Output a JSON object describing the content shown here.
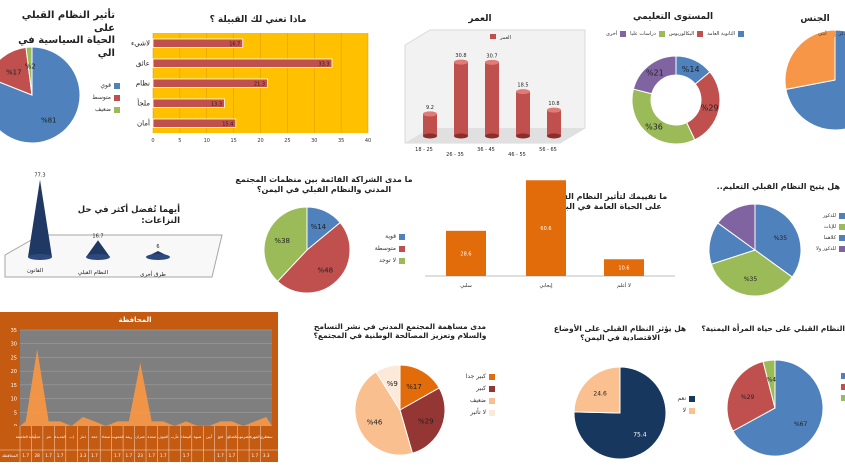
{
  "chart_data": [
    {
      "id": "political",
      "type": "pie",
      "title": "تأثير النظام القبلي على الحياة السياسية في اليمن",
      "title_visible": "تأثير النظام القبلي على\nالحياة السياسية في الي",
      "categories": [
        "قوي",
        "متوسط",
        "ضعيف"
      ],
      "values": [
        81,
        17,
        2
      ],
      "labels": [
        "%81",
        "%17",
        "%2"
      ],
      "colors": [
        "#4f81bd",
        "#c0504d",
        "#9bbb59"
      ],
      "legend": "right"
    },
    {
      "id": "tribe",
      "type": "bar",
      "orientation": "horizontal",
      "title": "ماذا تعني لك القبيلة ؟",
      "categories": [
        "لاشيء",
        "عائق",
        "نظام",
        "ملجأ",
        "أمان"
      ],
      "values": [
        16.7,
        33.3,
        21.3,
        13.3,
        15.4
      ],
      "value_labels": [
        "16.7",
        "33.3",
        "21.3",
        "13.3",
        "15.4"
      ],
      "xlim": [
        0,
        40
      ],
      "xticks": [
        "0",
        "5",
        "10",
        "15",
        "20",
        "25",
        "30",
        "35",
        "40"
      ],
      "color": "#c0504d",
      "plot_background": "#ffc000",
      "grid": true
    },
    {
      "id": "age",
      "type": "bar",
      "style": "3d-cylinder",
      "title": "العمر",
      "legend_label": "العمر",
      "categories": [
        "18 - 25",
        "26 - 35",
        "36 - 45",
        "46 - 55",
        "56 - 65"
      ],
      "values": [
        9.2,
        30.8,
        30.7,
        18.5,
        10.8
      ],
      "value_labels": [
        "9.2",
        "30.8",
        "30.7",
        "18.5",
        "10.8"
      ],
      "color": "#c0504d"
    },
    {
      "id": "education",
      "type": "pie",
      "style": "doughnut",
      "title": "المستوى التعليمي",
      "categories": [
        "الثانوية العامة",
        "البكالوريوس",
        "دراسات عليا",
        "أخرى"
      ],
      "values": [
        14,
        29,
        36,
        21
      ],
      "labels": [
        "%14",
        "%29",
        "%36",
        "%21"
      ],
      "colors": [
        "#4f81bd",
        "#c0504d",
        "#9bbb59",
        "#8064a2"
      ],
      "legend": "top"
    },
    {
      "id": "gender",
      "type": "pie",
      "title": "الجنس",
      "categories": [
        "ذكر",
        "أنثى"
      ],
      "values": [
        72,
        28
      ],
      "labels": [
        "%28"
      ],
      "colors": [
        "#4f81bd",
        "#f79646"
      ],
      "legend": "top"
    },
    {
      "id": "conflict",
      "type": "bar",
      "style": "3d-cone",
      "title": "أيهما تُفضل أكثر في حل النزاعات:",
      "categories": [
        "القانون",
        "النظام القبلي",
        "طرق أخرى"
      ],
      "values": [
        77.3,
        16.7,
        6
      ],
      "value_labels": [
        "77.3",
        "16.7",
        "6"
      ],
      "color": "#1f3864"
    },
    {
      "id": "partnership",
      "type": "pie",
      "title": "ما مدى الشراكة القائمة بين منظمات المجتمع المدني والنظام القبلي في اليمن؟",
      "categories": [
        "قوية",
        "متوسطة",
        "لا توجد"
      ],
      "values": [
        14,
        48,
        38
      ],
      "labels": [
        "%14",
        "%48",
        "%38"
      ],
      "colors": [
        "#4f81bd",
        "#c0504d",
        "#9bbb59"
      ],
      "legend": "right"
    },
    {
      "id": "assessment",
      "type": "bar",
      "title": "ما تقييمك لتأثير النظام القبلي على الحياة العامة في البلد؟",
      "categories": [
        "سلبي",
        "إيجابي",
        "لا أعلم"
      ],
      "values": [
        28.6,
        60.6,
        10.6
      ],
      "value_labels": [
        "28.6",
        "60.6",
        "10.6"
      ],
      "color": "#e26b0a"
    },
    {
      "id": "education_access",
      "type": "pie",
      "title": "هل يتيح النظام القبلي التعليم..",
      "categories": [
        "للذكور",
        "للإناث",
        "كلاهما",
        "للذكور ولا"
      ],
      "values": [
        35,
        35,
        15,
        15
      ],
      "labels": [
        "%35",
        "%35"
      ],
      "colors": [
        "#4f81bd",
        "#9bbb59",
        "#4f81bd",
        "#8064a2"
      ],
      "legend": "right"
    },
    {
      "id": "governorate",
      "type": "area",
      "title": "المحافظة",
      "series_label": "المحافظة",
      "categories": [
        "أمانة العاصمة",
        "عدن",
        "تعز",
        "الحديدة",
        "إب",
        "ذمار",
        "حجة",
        "صنعاء",
        "المحويت",
        "ريمة",
        "عمران",
        "صعدة",
        "الجوف",
        "مأرب",
        "البيضاء",
        "شبوة",
        "أبين",
        "لحج",
        "الضالع",
        "حضرموت",
        "المهرة",
        "سقطرى"
      ],
      "values": [
        1.7,
        28,
        1.7,
        1.7,
        0,
        3.3,
        1.7,
        0,
        1.7,
        1.7,
        23,
        1.7,
        1.7,
        0,
        1.7,
        0,
        0,
        1.7,
        1.7,
        0,
        1.7,
        3.3
      ],
      "ylim": [
        0,
        35
      ],
      "yticks": [
        "0",
        "5",
        "10",
        "15",
        "20",
        "25",
        "30",
        "35"
      ],
      "color": "#f79646",
      "background": "#c55a11",
      "plot_background": "#7f7f7f",
      "row_label": "المحافظة",
      "table_values": [
        "1.7",
        "28",
        "1.7",
        "1.7",
        "",
        "3.3",
        "1.7",
        "",
        "1.7",
        "1.7",
        "23",
        "1.7",
        "1.7",
        "",
        "1.7",
        "",
        "",
        "1.7",
        "1.7",
        "",
        "1.7",
        "3.3"
      ]
    },
    {
      "id": "civil_society",
      "type": "pie",
      "title": "مدى مساهمة المجتمع المدني في نشر التسامح والسلام وتعزيز المصالحة الوطنية في المجتمع؟",
      "categories": [
        "كبير جدا",
        "كبير",
        "ضعيف",
        "لا تأثير"
      ],
      "values": [
        17,
        29,
        46,
        9
      ],
      "labels": [
        "%17",
        "%29",
        "%46",
        "%9"
      ],
      "colors": [
        "#e26b0a",
        "#943634",
        "#fabf8f",
        "#fde9d9"
      ],
      "legend": "right"
    },
    {
      "id": "economy",
      "type": "pie",
      "title": "هل يؤثر النظام القبلي على الأوضاع الاقتصادية في اليمن؟",
      "categories": [
        "نعم",
        "لا"
      ],
      "values": [
        75.4,
        24.6
      ],
      "labels": [
        "75.4",
        "24.6"
      ],
      "colors": [
        "#17375e",
        "#fac090"
      ],
      "legend": "right"
    },
    {
      "id": "women",
      "type": "pie",
      "title": "النظام القبلي على حياة المرأة اليمنية؟",
      "title_visible": "النظام القبلي على حياة المرأة اليمنية؟",
      "categories": [
        "",
        "",
        ""
      ],
      "values": [
        67,
        29,
        4
      ],
      "labels": [
        "%67",
        "%29",
        "%4"
      ],
      "colors": [
        "#4f81bd",
        "#c0504d",
        "#9bbb59"
      ],
      "legend": "right"
    }
  ]
}
